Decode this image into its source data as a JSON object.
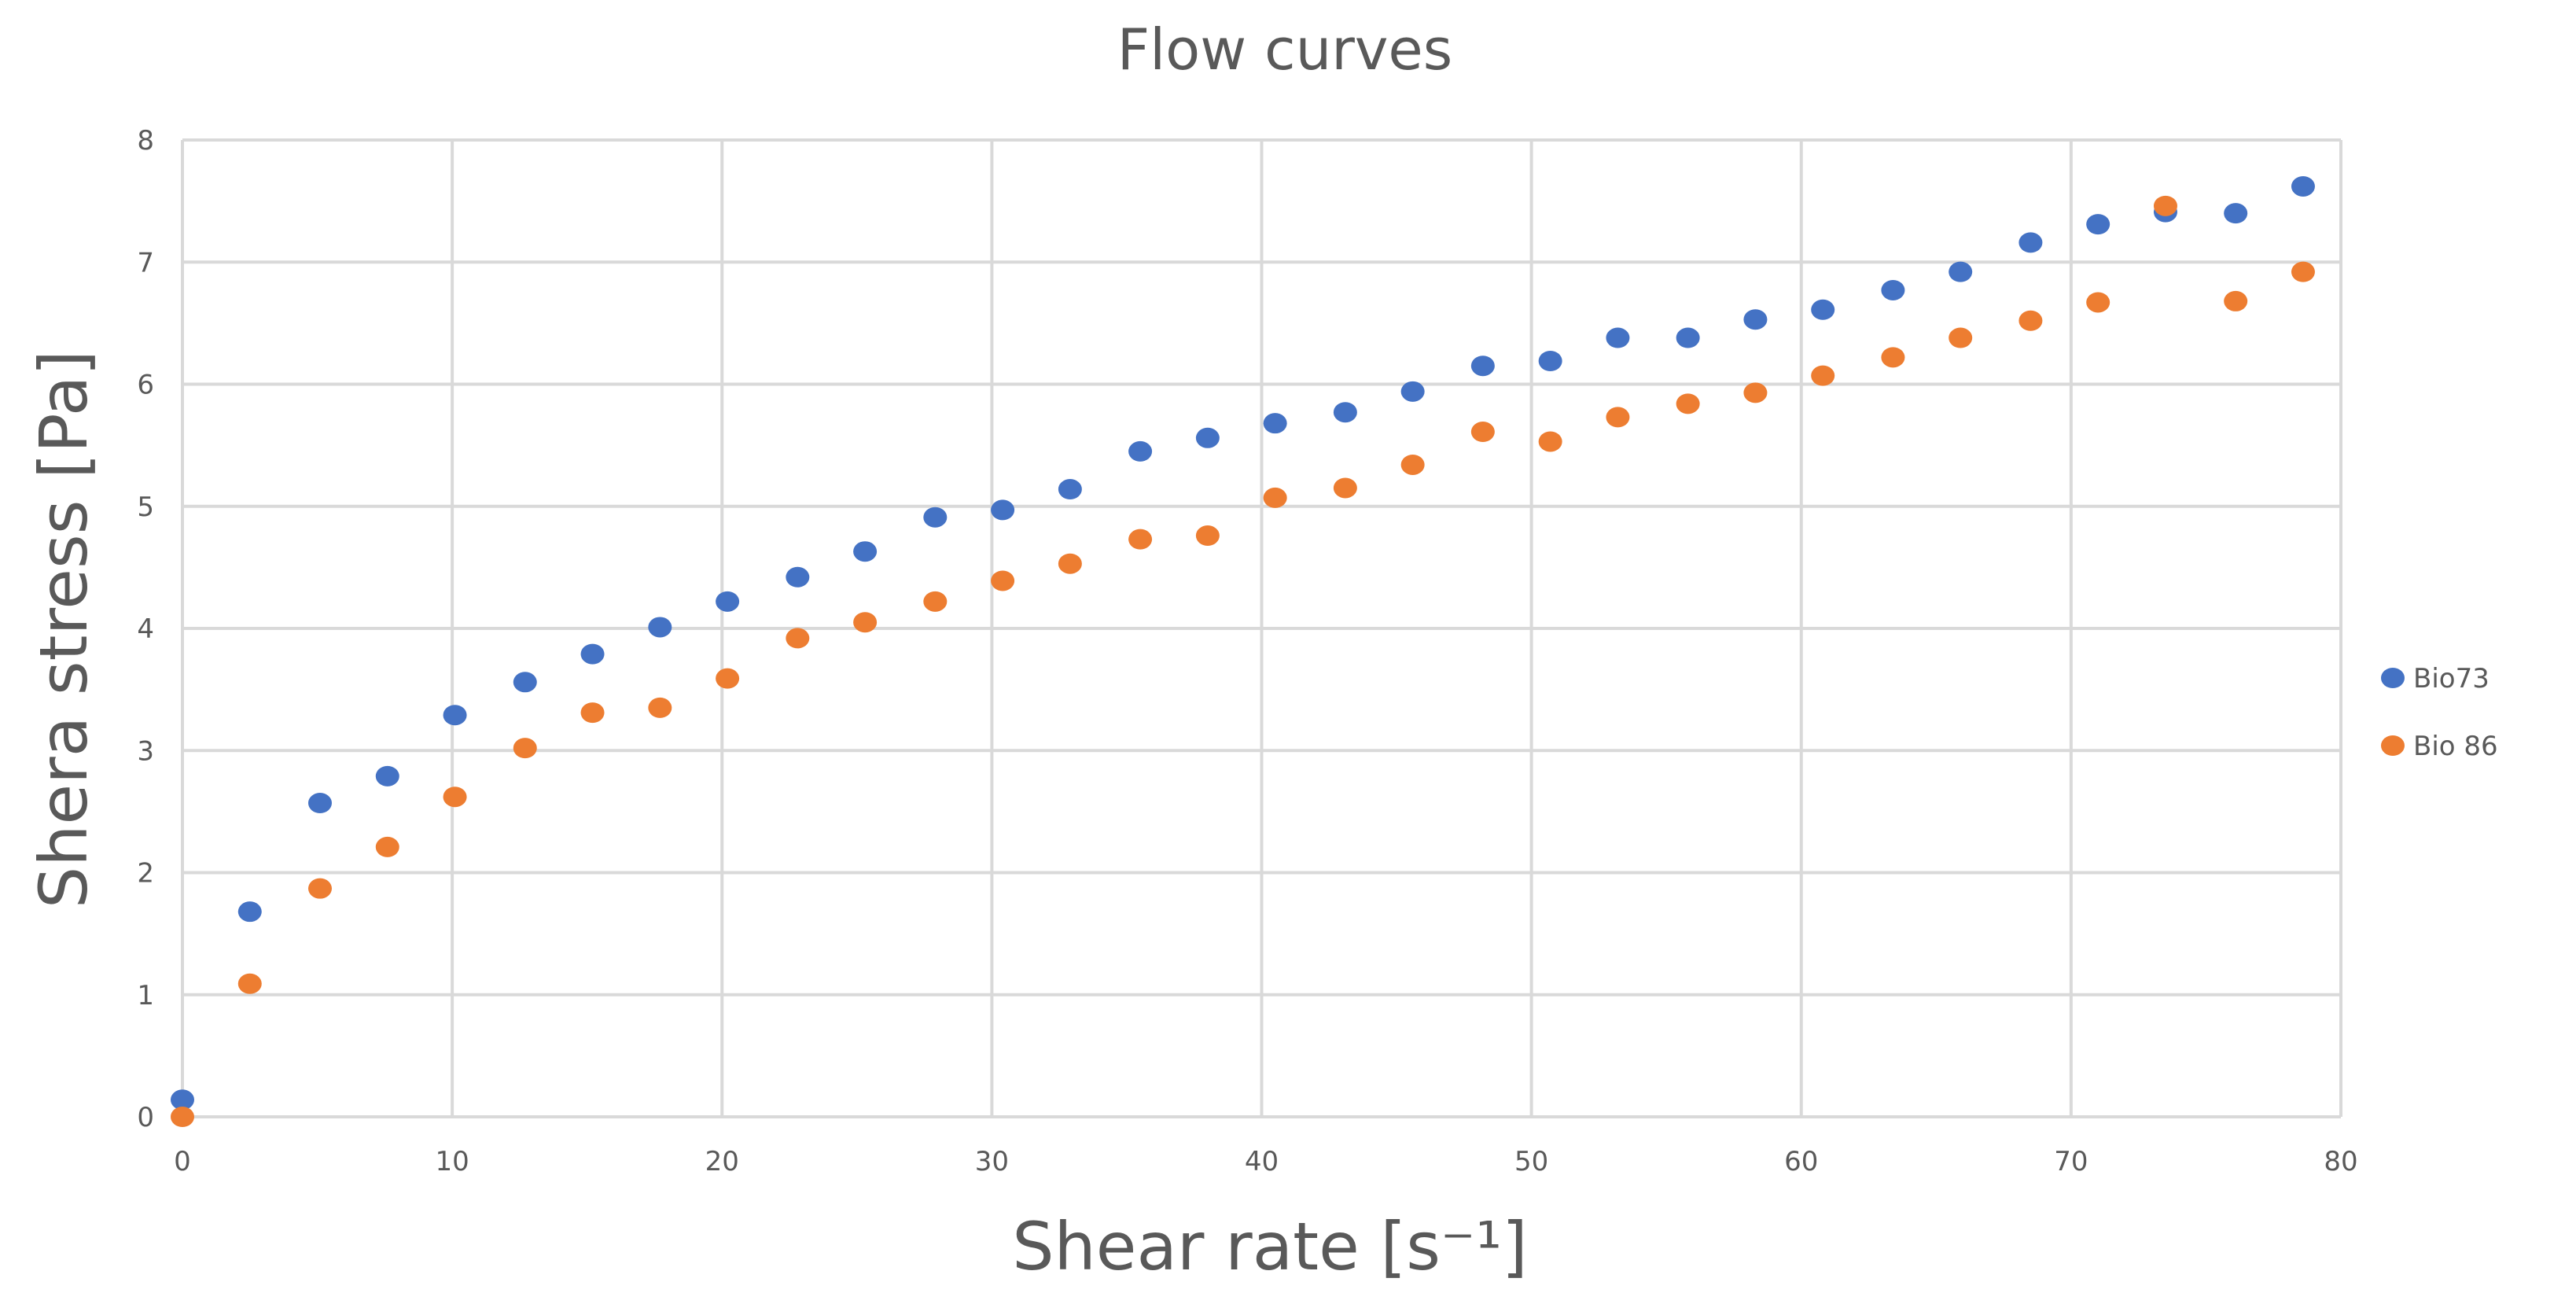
{
  "chart_data": {
    "type": "scatter",
    "title": "Flow curves",
    "xlabel": "Shear rate [s⁻¹]",
    "ylabel": "Shera stress [Pa]",
    "xlim": [
      0,
      80
    ],
    "ylim": [
      0,
      8
    ],
    "xticks": [
      "0",
      "10",
      "20",
      "30",
      "40",
      "50",
      "60",
      "70",
      "80"
    ],
    "yticks": [
      "0",
      "1",
      "2",
      "3",
      "4",
      "5",
      "6",
      "7",
      "8"
    ],
    "grid": true,
    "legend_position": "right",
    "series": [
      {
        "name": "Bio73",
        "color": "#4472c4",
        "x": [
          0,
          2.5,
          5.1,
          7.6,
          10.1,
          12.7,
          15.2,
          17.7,
          20.2,
          22.8,
          25.3,
          27.9,
          30.4,
          32.9,
          35.5,
          38.0,
          40.5,
          43.1,
          45.6,
          48.2,
          50.7,
          53.2,
          55.8,
          58.3,
          60.8,
          63.4,
          65.9,
          68.5,
          71.0,
          73.5,
          76.1,
          78.6
        ],
        "y": [
          0.14,
          1.68,
          2.57,
          2.79,
          3.29,
          3.56,
          3.79,
          4.01,
          4.22,
          4.42,
          4.63,
          4.91,
          4.97,
          5.14,
          5.45,
          5.56,
          5.68,
          5.77,
          5.94,
          6.15,
          6.19,
          6.38,
          6.38,
          6.53,
          6.61,
          6.77,
          6.92,
          7.16,
          7.31,
          7.41,
          7.4,
          7.62
        ]
      },
      {
        "name": "Bio 86",
        "color": "#ed7d31",
        "x": [
          0,
          2.5,
          5.1,
          7.6,
          10.1,
          12.7,
          15.2,
          17.7,
          20.2,
          22.8,
          25.3,
          27.9,
          30.4,
          32.9,
          35.5,
          38.0,
          40.5,
          43.1,
          45.6,
          48.2,
          50.7,
          53.2,
          55.8,
          58.3,
          60.8,
          63.4,
          65.9,
          68.5,
          71.0,
          73.5,
          76.1,
          78.6
        ],
        "y": [
          0.0,
          1.09,
          1.87,
          2.21,
          2.62,
          3.02,
          3.31,
          3.35,
          3.59,
          3.92,
          4.05,
          4.22,
          4.39,
          4.53,
          4.73,
          4.76,
          5.07,
          5.15,
          5.34,
          5.61,
          5.53,
          5.73,
          5.84,
          5.93,
          6.07,
          6.22,
          6.38,
          6.52,
          6.67,
          7.46,
          6.68,
          6.92
        ]
      }
    ]
  }
}
